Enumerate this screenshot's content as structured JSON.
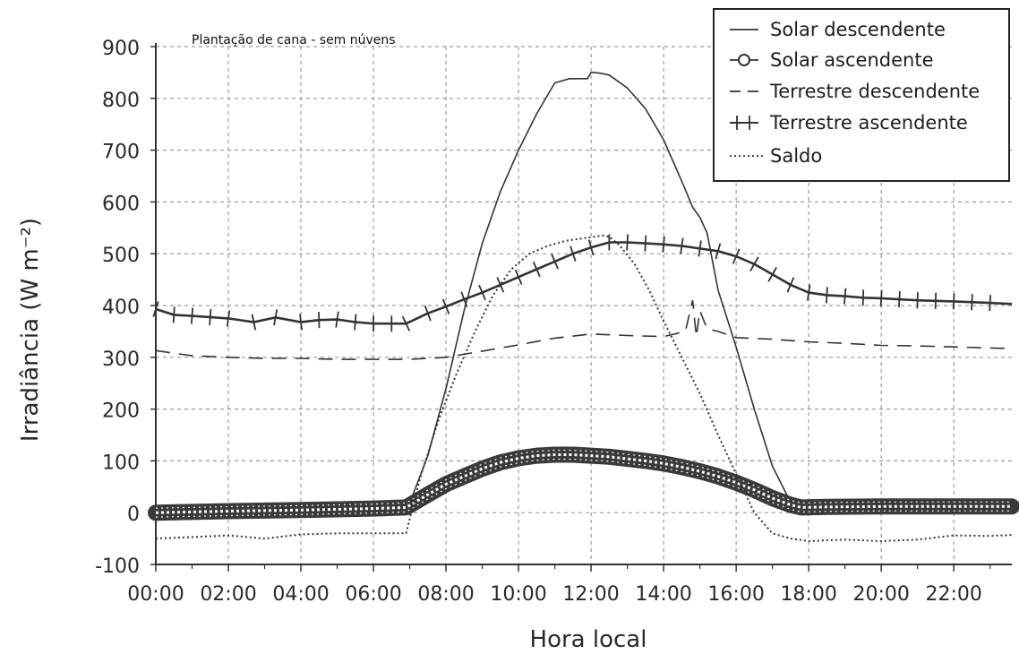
{
  "chart_data": {
    "type": "line",
    "title": "Plantação de cana - sem núvens",
    "xlabel": "Hora local",
    "ylabel": "Irradiância (W m⁻²)",
    "xlim": [
      0,
      23.6
    ],
    "ylim": [
      -100,
      900
    ],
    "grid": true,
    "legend_position": "top-right",
    "x_ticks": [
      "00:00",
      "02:00",
      "04:00",
      "06:00",
      "08:00",
      "10:00",
      "12:00",
      "14:00",
      "16:00",
      "18:00",
      "20:00",
      "22:00"
    ],
    "y_ticks": [
      "-100",
      "0",
      "100",
      "200",
      "300",
      "400",
      "500",
      "600",
      "700",
      "800",
      "900"
    ],
    "series": [
      {
        "name": "Solar descendente",
        "style": "solid",
        "x": [
          0,
          6.5,
          6.9,
          7.5,
          8.0,
          8.5,
          9.0,
          9.5,
          10.0,
          10.5,
          11.0,
          11.4,
          11.9,
          12.0,
          12.1,
          12.3,
          12.5,
          13.0,
          13.5,
          14.0,
          14.5,
          14.8,
          15.0,
          15.2,
          15.5,
          16.0,
          16.5,
          17.0,
          17.5,
          17.8,
          18.5,
          20,
          22,
          23.6
        ],
        "y": [
          0,
          0,
          0,
          110,
          240,
          390,
          520,
          620,
          700,
          770,
          830,
          838,
          838,
          850,
          850,
          848,
          845,
          820,
          780,
          720,
          640,
          590,
          570,
          540,
          430,
          320,
          200,
          90,
          20,
          0,
          0,
          0,
          0,
          0
        ]
      },
      {
        "name": "Solar ascendente",
        "style": "circles",
        "x": [
          0,
          2,
          4,
          6,
          6.9,
          7.5,
          8.0,
          8.5,
          9.0,
          9.5,
          10.0,
          10.5,
          11.0,
          11.5,
          12.0,
          12.5,
          13.0,
          13.5,
          14.0,
          14.5,
          15.0,
          15.5,
          16.0,
          16.5,
          17.0,
          17.5,
          17.8,
          18.5,
          20,
          22,
          23.6
        ],
        "y": [
          0,
          3,
          5,
          8,
          10,
          35,
          55,
          70,
          85,
          97,
          105,
          110,
          112,
          112,
          110,
          108,
          104,
          100,
          95,
          88,
          80,
          70,
          58,
          44,
          28,
          15,
          10,
          11,
          12,
          12,
          12
        ]
      },
      {
        "name": "Terrestre descendente",
        "style": "dashed",
        "x": [
          0,
          1,
          2,
          3,
          4,
          5,
          6,
          7,
          8,
          9,
          10,
          11,
          12,
          13,
          14,
          14.6,
          14.8,
          14.9,
          15.0,
          15.2,
          15.5,
          16,
          17,
          18,
          19,
          20,
          21,
          22,
          23,
          23.6
        ],
        "y": [
          313,
          303,
          300,
          298,
          298,
          296,
          296,
          296,
          300,
          312,
          324,
          337,
          345,
          342,
          340,
          350,
          410,
          340,
          390,
          355,
          350,
          338,
          335,
          330,
          327,
          323,
          322,
          320,
          318,
          317
        ]
      },
      {
        "name": "Terrestre ascendente",
        "style": "plus",
        "x": [
          0,
          0.5,
          1,
          2,
          2.7,
          3.3,
          4,
          4.5,
          5,
          5.5,
          6,
          6.5,
          6.9,
          7.5,
          8,
          8.5,
          9,
          9.5,
          10,
          10.5,
          11,
          11.5,
          12,
          12.5,
          13,
          13.5,
          14,
          14.5,
          15,
          15.5,
          16,
          16.5,
          17,
          17.5,
          18,
          18.5,
          19,
          19.5,
          20,
          21,
          22,
          23,
          23.6
        ],
        "y": [
          393,
          382,
          380,
          375,
          368,
          377,
          368,
          372,
          373,
          368,
          365,
          365,
          365,
          385,
          398,
          412,
          425,
          440,
          455,
          470,
          485,
          500,
          512,
          522,
          522,
          520,
          518,
          515,
          510,
          505,
          495,
          480,
          460,
          440,
          425,
          420,
          418,
          415,
          414,
          410,
          408,
          405,
          403
        ]
      },
      {
        "name": "Saldo",
        "style": "dotted",
        "x": [
          0,
          1,
          2,
          3,
          4,
          5,
          6,
          6.9,
          7.3,
          7.8,
          8.3,
          8.8,
          9.3,
          9.8,
          10.3,
          10.8,
          11.3,
          11.8,
          12.3,
          12.5,
          12.8,
          13.2,
          13.6,
          14.0,
          14.5,
          15.0,
          15.5,
          16.0,
          16.5,
          17.0,
          17.5,
          18,
          19,
          20,
          21,
          22,
          23,
          23.6
        ],
        "y": [
          -50,
          -47,
          -44,
          -50,
          -42,
          -40,
          -40,
          -40,
          70,
          180,
          270,
          350,
          420,
          470,
          500,
          515,
          525,
          530,
          535,
          533,
          515,
          480,
          430,
          370,
          300,
          230,
          150,
          75,
          0,
          -40,
          -50,
          -55,
          -52,
          -55,
          -52,
          -44,
          -45,
          -43
        ]
      }
    ]
  }
}
